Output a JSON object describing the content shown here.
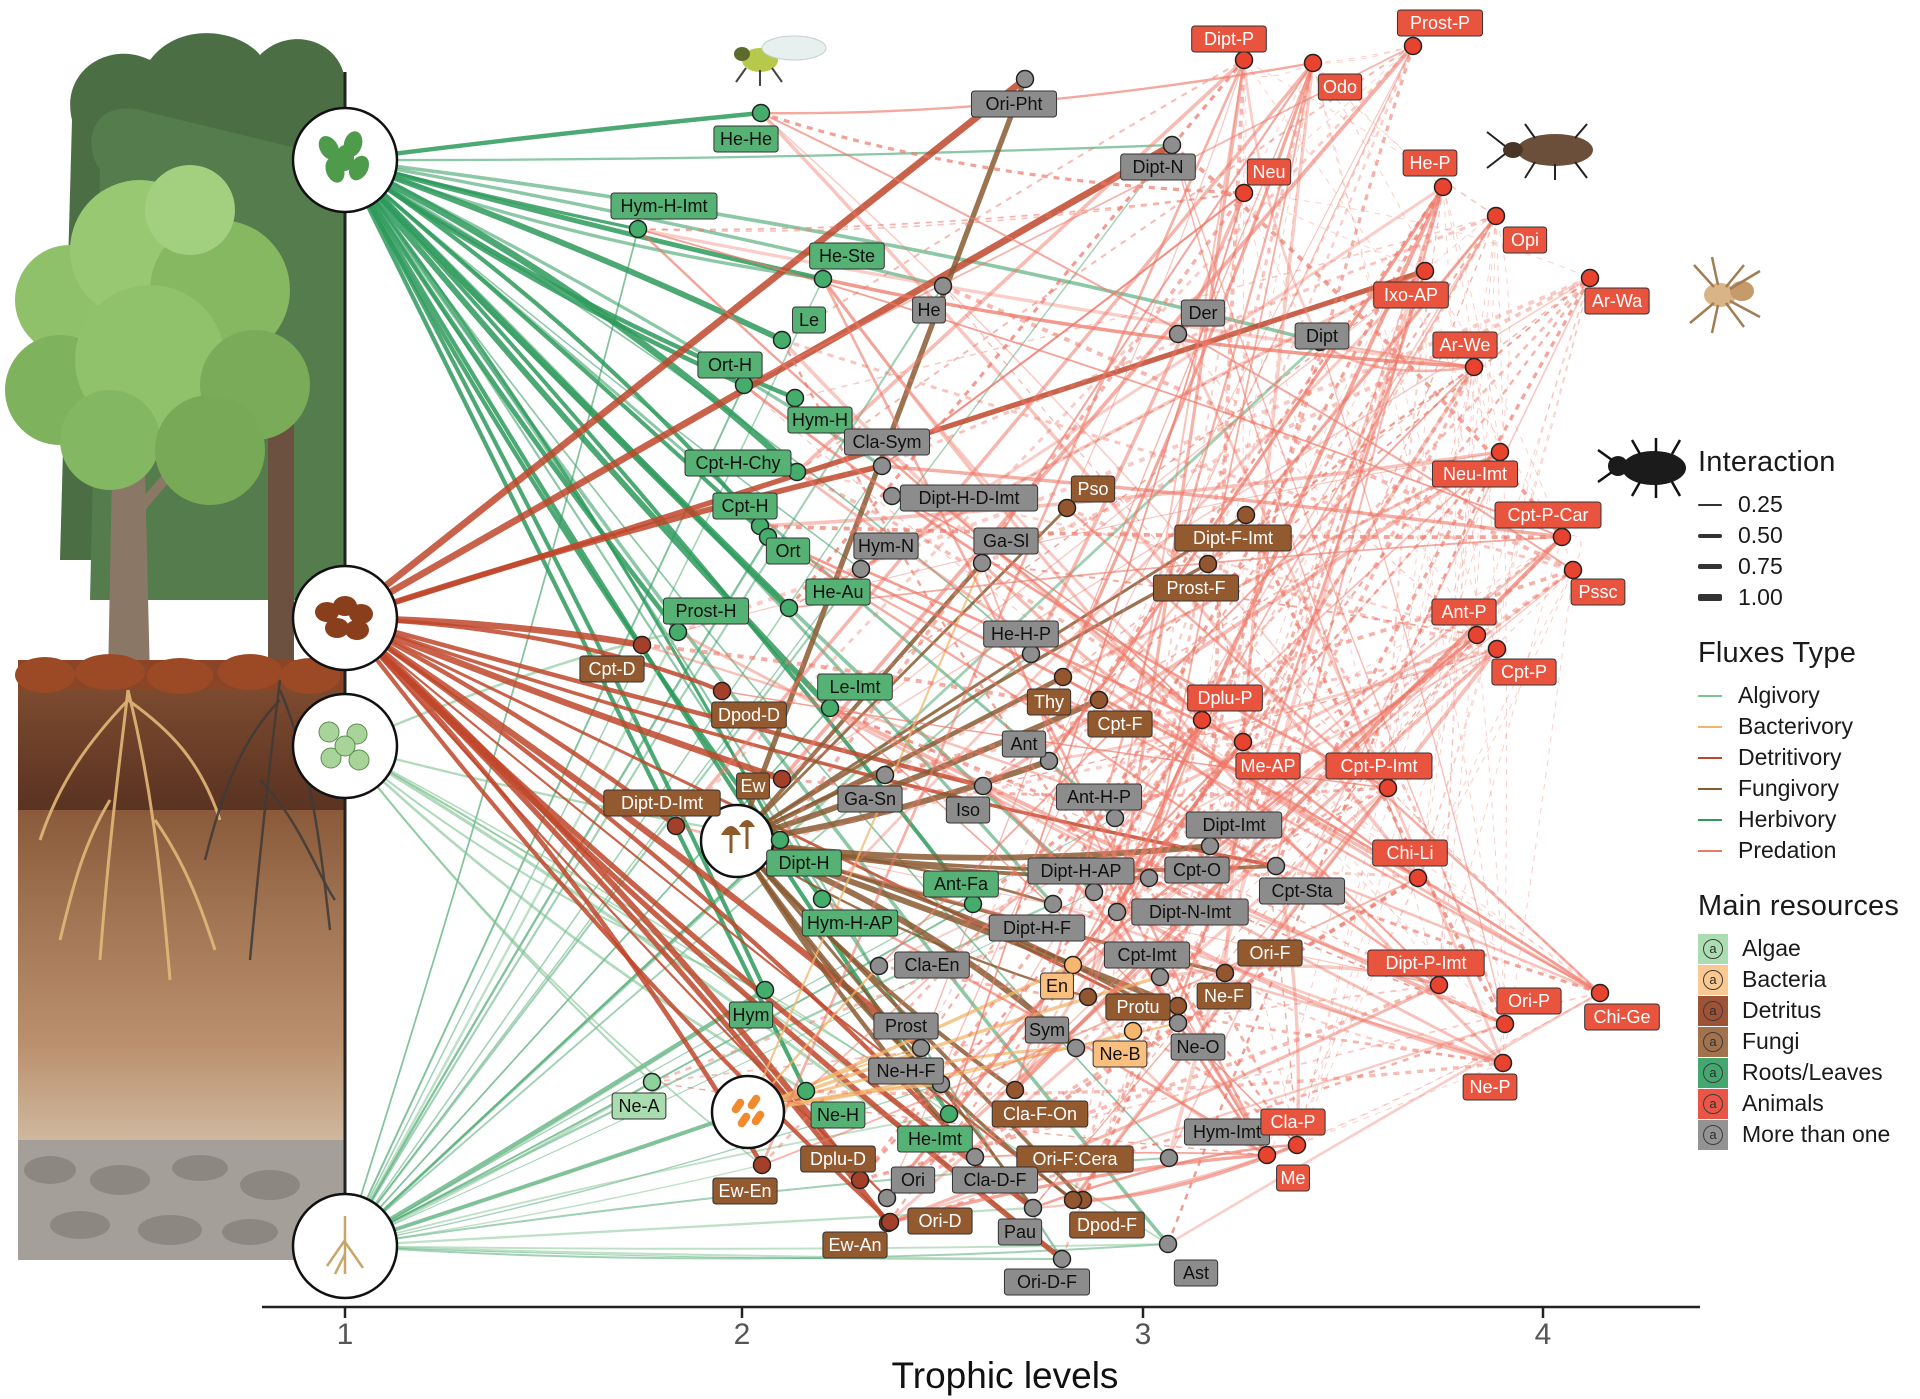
{
  "axis": {
    "xlabel": "Trophic levels",
    "ticks": [
      "1",
      "2",
      "3",
      "4"
    ]
  },
  "legend": {
    "interaction": {
      "title": "Interaction",
      "items": [
        "0.25",
        "0.50",
        "0.75",
        "1.00"
      ]
    },
    "fluxes": {
      "title": "Fluxes Type",
      "items": [
        {
          "label": "Algivory",
          "color": "#7cc28e"
        },
        {
          "label": "Bacterivory",
          "color": "#f2b56b"
        },
        {
          "label": "Detritivory",
          "color": "#c0462a"
        },
        {
          "label": "Fungivory",
          "color": "#8a5a33"
        },
        {
          "label": "Herbivory",
          "color": "#2e9a5c"
        },
        {
          "label": "Predation",
          "color": "#ee7767"
        }
      ]
    },
    "resources": {
      "title": "Main resources",
      "items": [
        {
          "label": "Algae",
          "color": "#a8dcae"
        },
        {
          "label": "Bacteria",
          "color": "#f9c78c"
        },
        {
          "label": "Detritus",
          "color": "#9a4a2c"
        },
        {
          "label": "Fungi",
          "color": "#9c6b43"
        },
        {
          "label": "Roots/Leaves",
          "color": "#3aa368"
        },
        {
          "label": "Animals",
          "color": "#e94e3c"
        },
        {
          "label": "More than one",
          "color": "#8e8e8e"
        }
      ]
    },
    "glyph": "a"
  },
  "colors": {
    "algivory": "#7cc28e",
    "bacterivory": "#f2b56b",
    "detritivory": "#c0462a",
    "fungivory": "#8a5a33",
    "herbivory": "#2e9a5c",
    "predation": "#ee7767",
    "label_green": "#56b274",
    "label_red": "#e9543f",
    "label_brown": "#93592f",
    "label_gray": "#8c8c8c",
    "label_orange": "#f9bf7e",
    "label_lightgreen": "#a9dcaf"
  },
  "nodes": [
    {
      "id": "He-He",
      "cat": "green"
    },
    {
      "id": "Hym-H-Imt",
      "cat": "green"
    },
    {
      "id": "He-Ste",
      "cat": "green"
    },
    {
      "id": "Le",
      "cat": "green"
    },
    {
      "id": "Ort-H",
      "cat": "green"
    },
    {
      "id": "Hym-H",
      "cat": "green"
    },
    {
      "id": "Cpt-H-Chy",
      "cat": "green"
    },
    {
      "id": "Cpt-H",
      "cat": "green"
    },
    {
      "id": "Ort",
      "cat": "green"
    },
    {
      "id": "He-Au",
      "cat": "green"
    },
    {
      "id": "Prost-H",
      "cat": "green"
    },
    {
      "id": "Le-Imt",
      "cat": "green"
    },
    {
      "id": "Dipt-H",
      "cat": "green"
    },
    {
      "id": "Ant-Fa",
      "cat": "green"
    },
    {
      "id": "Hym-H-AP",
      "cat": "green"
    },
    {
      "id": "Hym",
      "cat": "green"
    },
    {
      "id": "Ne-H",
      "cat": "green"
    },
    {
      "id": "He-Imt",
      "cat": "green"
    },
    {
      "id": "Ne-A",
      "cat": "lightgreen"
    },
    {
      "id": "Cpt-D",
      "cat": "detritus"
    },
    {
      "id": "Dpod-D",
      "cat": "detritus"
    },
    {
      "id": "Ew",
      "cat": "detritus"
    },
    {
      "id": "Dipt-D-Imt",
      "cat": "detritus"
    },
    {
      "id": "Dplu-D",
      "cat": "detritus"
    },
    {
      "id": "Ew-En",
      "cat": "detritus"
    },
    {
      "id": "Ori-D",
      "cat": "detritus"
    },
    {
      "id": "Ew-An",
      "cat": "detritus"
    },
    {
      "id": "Pso",
      "cat": "fungi"
    },
    {
      "id": "Dipt-F-Imt",
      "cat": "fungi"
    },
    {
      "id": "Prost-F",
      "cat": "fungi"
    },
    {
      "id": "Thy",
      "cat": "fungi"
    },
    {
      "id": "Cpt-F",
      "cat": "fungi"
    },
    {
      "id": "Ori-F",
      "cat": "fungi"
    },
    {
      "id": "Ne-F",
      "cat": "fungi"
    },
    {
      "id": "Protu",
      "cat": "fungi"
    },
    {
      "id": "Cla-F-On",
      "cat": "fungi"
    },
    {
      "id": "Ori-F:Cera",
      "cat": "fungi"
    },
    {
      "id": "Dpod-F",
      "cat": "fungi"
    },
    {
      "id": "En",
      "cat": "bacteria"
    },
    {
      "id": "Ne-B",
      "cat": "bacteria"
    },
    {
      "id": "Ori-Pht",
      "cat": "gray"
    },
    {
      "id": "Dipt-N",
      "cat": "gray"
    },
    {
      "id": "He",
      "cat": "gray"
    },
    {
      "id": "Der",
      "cat": "gray"
    },
    {
      "id": "Dipt",
      "cat": "gray"
    },
    {
      "id": "Cla-Sym",
      "cat": "gray"
    },
    {
      "id": "Dipt-H-D-Imt",
      "cat": "gray"
    },
    {
      "id": "Hym-N",
      "cat": "gray"
    },
    {
      "id": "Ga-Sl",
      "cat": "gray"
    },
    {
      "id": "He-H-P",
      "cat": "gray"
    },
    {
      "id": "Ant",
      "cat": "gray"
    },
    {
      "id": "Ga-Sn",
      "cat": "gray"
    },
    {
      "id": "Iso",
      "cat": "gray"
    },
    {
      "id": "Ant-H-P",
      "cat": "gray"
    },
    {
      "id": "Dipt-Imt",
      "cat": "gray"
    },
    {
      "id": "Dipt-H-AP",
      "cat": "gray"
    },
    {
      "id": "Cpt-O",
      "cat": "gray"
    },
    {
      "id": "Cpt-Sta",
      "cat": "gray"
    },
    {
      "id": "Dipt-H-F",
      "cat": "gray"
    },
    {
      "id": "Dipt-N-Imt",
      "cat": "gray"
    },
    {
      "id": "Cla-En",
      "cat": "gray"
    },
    {
      "id": "Cpt-Imt",
      "cat": "gray"
    },
    {
      "id": "Prost",
      "cat": "gray"
    },
    {
      "id": "Sym",
      "cat": "gray"
    },
    {
      "id": "Ne-O",
      "cat": "gray"
    },
    {
      "id": "Ne-H-F",
      "cat": "gray"
    },
    {
      "id": "Hym-Imt",
      "cat": "gray"
    },
    {
      "id": "Ori",
      "cat": "gray"
    },
    {
      "id": "Cla-D-F",
      "cat": "gray"
    },
    {
      "id": "Pau",
      "cat": "gray"
    },
    {
      "id": "Ori-D-F",
      "cat": "gray"
    },
    {
      "id": "Ast",
      "cat": "gray"
    },
    {
      "id": "Dipt-P",
      "cat": "red"
    },
    {
      "id": "Prost-P",
      "cat": "red"
    },
    {
      "id": "Odo",
      "cat": "red"
    },
    {
      "id": "Neu",
      "cat": "red"
    },
    {
      "id": "He-P",
      "cat": "red"
    },
    {
      "id": "Opi",
      "cat": "red"
    },
    {
      "id": "Ixo-AP",
      "cat": "red"
    },
    {
      "id": "Ar-Wa",
      "cat": "red"
    },
    {
      "id": "Ar-We",
      "cat": "red"
    },
    {
      "id": "Neu-Imt",
      "cat": "red"
    },
    {
      "id": "Cpt-P-Car",
      "cat": "red"
    },
    {
      "id": "Pssc",
      "cat": "red"
    },
    {
      "id": "Ant-P",
      "cat": "red"
    },
    {
      "id": "Cpt-P",
      "cat": "red"
    },
    {
      "id": "Dplu-P",
      "cat": "red"
    },
    {
      "id": "Me-AP",
      "cat": "red"
    },
    {
      "id": "Cpt-P-Imt",
      "cat": "red"
    },
    {
      "id": "Chi-Li",
      "cat": "red"
    },
    {
      "id": "Dipt-P-Imt",
      "cat": "red"
    },
    {
      "id": "Ori-P",
      "cat": "red"
    },
    {
      "id": "Chi-Ge",
      "cat": "red"
    },
    {
      "id": "Ne-P",
      "cat": "red"
    },
    {
      "id": "Cla-P",
      "cat": "red"
    },
    {
      "id": "Me",
      "cat": "red"
    }
  ]
}
